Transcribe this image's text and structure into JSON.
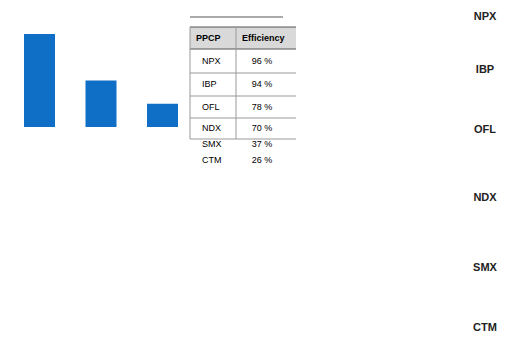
{
  "chart_data": {
    "type": "bar",
    "categories": [
      null,
      null,
      null
    ],
    "values": [
      100,
      50,
      25
    ],
    "color": "#0f6fc6",
    "ylim": [
      0,
      100
    ],
    "tick_labels": false,
    "grid": false
  },
  "table": {
    "header": [
      "PPCP",
      "Efficiency"
    ],
    "rows": [
      [
        "NPX",
        "96 %"
      ],
      [
        "IBP",
        "94 %"
      ],
      [
        "OFL",
        "78 %"
      ],
      [
        "NDX",
        "70 %"
      ],
      [
        "SMX",
        "37 %"
      ],
      [
        "CTM",
        "26 %"
      ]
    ]
  },
  "side_labels": [
    "NPX",
    "IBP",
    "OFL",
    "NDX",
    "SMX",
    "CTM"
  ]
}
